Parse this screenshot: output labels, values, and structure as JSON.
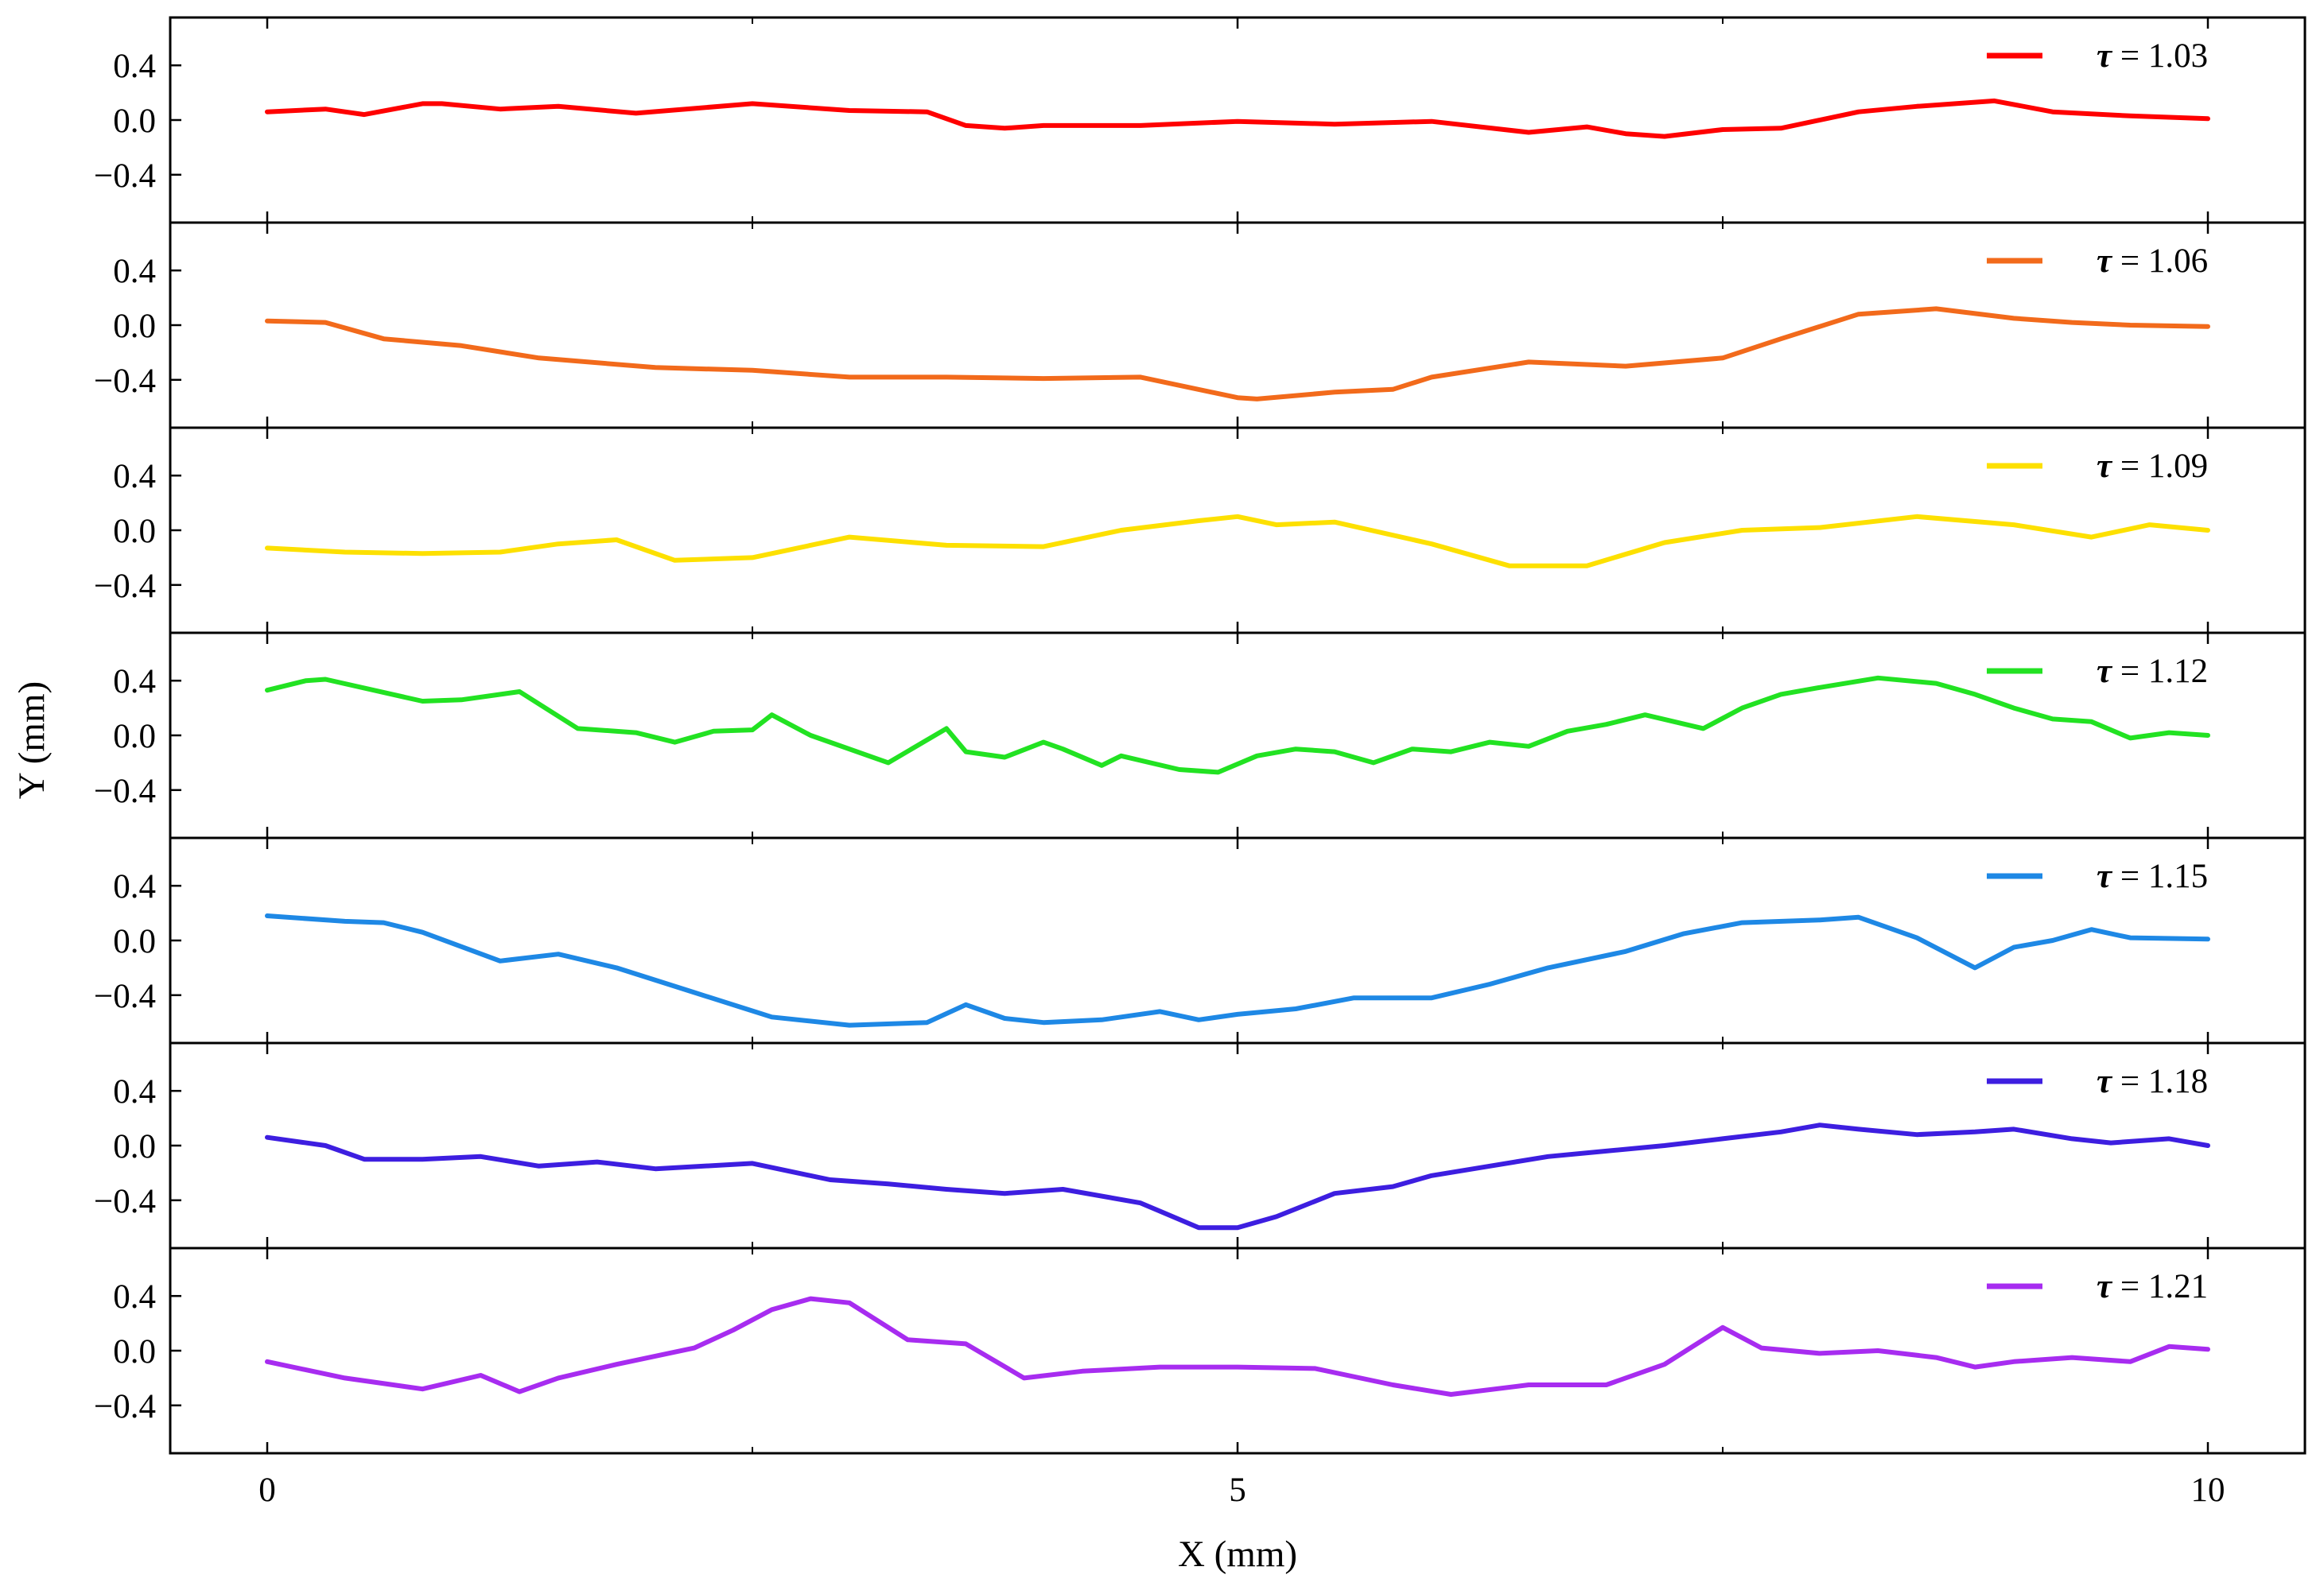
{
  "chart_data": {
    "type": "line",
    "layout": "stacked-panels",
    "xlabel": "X (mm)",
    "ylabel": "Y (mm)",
    "xlim": [
      -0.5,
      10.5
    ],
    "x_ticks": [
      0,
      5,
      10
    ],
    "x_tick_labels": [
      "0",
      "5",
      "10"
    ],
    "ylim": [
      -0.75,
      0.75
    ],
    "y_ticks": [
      0.4,
      0.0,
      -0.4
    ],
    "y_tick_labels": [
      "0.4",
      "0.0",
      "−0.4"
    ],
    "grid": false,
    "legend_placement": "top-right of each panel",
    "legend_symbol": "τ",
    "legend_equals": "=",
    "series": [
      {
        "name": "τ = 1.03",
        "tau": "1.03",
        "color": "#ff0000",
        "x": [
          0,
          0.3,
          0.5,
          0.8,
          0.9,
          1.2,
          1.5,
          1.9,
          2.5,
          3.0,
          3.4,
          3.6,
          3.8,
          4.0,
          4.5,
          5.0,
          5.5,
          6.0,
          6.5,
          6.8,
          7.0,
          7.2,
          7.5,
          7.8,
          8.2,
          8.5,
          8.9,
          9.2,
          9.6,
          10.0
        ],
        "values": [
          0.06,
          0.08,
          0.04,
          0.12,
          0.12,
          0.08,
          0.1,
          0.05,
          0.12,
          0.07,
          0.06,
          -0.04,
          -0.06,
          -0.04,
          -0.04,
          -0.01,
          -0.03,
          -0.01,
          -0.09,
          -0.05,
          -0.1,
          -0.12,
          -0.07,
          -0.06,
          0.06,
          0.1,
          0.14,
          0.06,
          0.03,
          0.01
        ]
      },
      {
        "name": "τ = 1.06",
        "tau": "1.06",
        "color": "#f26a1b",
        "x": [
          0,
          0.3,
          0.6,
          1.0,
          1.4,
          2.0,
          2.5,
          3.0,
          3.5,
          4.0,
          4.5,
          5.0,
          5.1,
          5.5,
          5.8,
          6.0,
          6.5,
          7.0,
          7.5,
          7.8,
          8.2,
          8.6,
          9.0,
          9.3,
          9.6,
          10.0
        ],
        "values": [
          0.03,
          0.02,
          -0.1,
          -0.15,
          -0.24,
          -0.31,
          -0.33,
          -0.38,
          -0.38,
          -0.39,
          -0.38,
          -0.53,
          -0.54,
          -0.49,
          -0.47,
          -0.38,
          -0.27,
          -0.3,
          -0.24,
          -0.1,
          0.08,
          0.12,
          0.05,
          0.02,
          0.0,
          -0.01
        ]
      },
      {
        "name": "τ = 1.09",
        "tau": "1.09",
        "color": "#fde000",
        "x": [
          0,
          0.4,
          0.8,
          1.2,
          1.5,
          1.8,
          2.1,
          2.5,
          3.0,
          3.5,
          4.0,
          4.4,
          4.8,
          5.0,
          5.2,
          5.5,
          6.0,
          6.4,
          6.8,
          7.2,
          7.6,
          8.0,
          8.5,
          9.0,
          9.4,
          9.7,
          10.0
        ],
        "values": [
          -0.13,
          -0.16,
          -0.17,
          -0.16,
          -0.1,
          -0.07,
          -0.22,
          -0.2,
          -0.05,
          -0.11,
          -0.12,
          0.0,
          0.07,
          0.1,
          0.04,
          0.06,
          -0.1,
          -0.26,
          -0.26,
          -0.09,
          0.0,
          0.02,
          0.1,
          0.04,
          -0.05,
          0.04,
          0.0
        ]
      },
      {
        "name": "τ = 1.12",
        "tau": "1.12",
        "color": "#22e222",
        "x": [
          0,
          0.2,
          0.3,
          0.8,
          1.0,
          1.3,
          1.6,
          1.9,
          2.1,
          2.3,
          2.5,
          2.6,
          2.8,
          3.2,
          3.5,
          3.6,
          3.8,
          4.0,
          4.1,
          4.3,
          4.4,
          4.7,
          4.9,
          5.1,
          5.3,
          5.5,
          5.7,
          5.9,
          6.1,
          6.3,
          6.5,
          6.7,
          6.9,
          7.1,
          7.4,
          7.6,
          7.8,
          8.0,
          8.3,
          8.6,
          8.8,
          9.0,
          9.2,
          9.4,
          9.6,
          9.8,
          10.0
        ],
        "values": [
          0.33,
          0.4,
          0.41,
          0.25,
          0.26,
          0.32,
          0.05,
          0.02,
          -0.05,
          0.03,
          0.04,
          0.15,
          0.0,
          -0.2,
          0.05,
          -0.12,
          -0.16,
          -0.05,
          -0.1,
          -0.22,
          -0.15,
          -0.25,
          -0.27,
          -0.15,
          -0.1,
          -0.12,
          -0.2,
          -0.1,
          -0.12,
          -0.05,
          -0.08,
          0.03,
          0.08,
          0.15,
          0.05,
          0.2,
          0.3,
          0.35,
          0.42,
          0.38,
          0.3,
          0.2,
          0.12,
          0.1,
          -0.02,
          0.02,
          0.0
        ]
      },
      {
        "name": "τ = 1.15",
        "tau": "1.15",
        "color": "#1e88e5",
        "x": [
          0,
          0.4,
          0.6,
          0.8,
          1.2,
          1.5,
          1.8,
          2.2,
          2.6,
          3.0,
          3.4,
          3.6,
          3.8,
          4.0,
          4.3,
          4.6,
          4.8,
          5.0,
          5.3,
          5.6,
          6.0,
          6.3,
          6.6,
          7.0,
          7.3,
          7.6,
          8.0,
          8.2,
          8.5,
          8.8,
          9.0,
          9.2,
          9.4,
          9.6,
          10.0
        ],
        "values": [
          0.18,
          0.14,
          0.13,
          0.06,
          -0.15,
          -0.1,
          -0.2,
          -0.38,
          -0.56,
          -0.62,
          -0.6,
          -0.47,
          -0.57,
          -0.6,
          -0.58,
          -0.52,
          -0.58,
          -0.54,
          -0.5,
          -0.42,
          -0.42,
          -0.32,
          -0.2,
          -0.08,
          0.05,
          0.13,
          0.15,
          0.17,
          0.02,
          -0.2,
          -0.05,
          0.0,
          0.08,
          0.02,
          0.01
        ]
      },
      {
        "name": "τ = 1.18",
        "tau": "1.18",
        "color": "#3d1ee0",
        "x": [
          0,
          0.3,
          0.5,
          0.8,
          1.1,
          1.4,
          1.7,
          2.0,
          2.5,
          2.9,
          3.2,
          3.5,
          3.8,
          4.1,
          4.5,
          4.8,
          5.0,
          5.2,
          5.5,
          5.8,
          6.0,
          6.3,
          6.6,
          6.9,
          7.2,
          7.5,
          7.8,
          8.0,
          8.2,
          8.5,
          8.8,
          9.0,
          9.3,
          9.5,
          9.8,
          10.0
        ],
        "values": [
          0.06,
          0.0,
          -0.1,
          -0.1,
          -0.08,
          -0.15,
          -0.12,
          -0.17,
          -0.13,
          -0.25,
          -0.28,
          -0.32,
          -0.35,
          -0.32,
          -0.42,
          -0.6,
          -0.6,
          -0.52,
          -0.35,
          -0.3,
          -0.22,
          -0.15,
          -0.08,
          -0.04,
          0.0,
          0.05,
          0.1,
          0.15,
          0.12,
          0.08,
          0.1,
          0.12,
          0.05,
          0.02,
          0.05,
          0.0
        ]
      },
      {
        "name": "τ = 1.21",
        "tau": "1.21",
        "color": "#a72cf0",
        "x": [
          0,
          0.4,
          0.8,
          1.1,
          1.3,
          1.5,
          1.8,
          2.2,
          2.4,
          2.6,
          2.8,
          3.0,
          3.3,
          3.6,
          3.9,
          4.2,
          4.6,
          5.0,
          5.4,
          5.8,
          6.1,
          6.5,
          6.9,
          7.2,
          7.5,
          7.7,
          8.0,
          8.3,
          8.6,
          8.8,
          9.0,
          9.3,
          9.6,
          9.8,
          10.0
        ],
        "values": [
          -0.08,
          -0.2,
          -0.28,
          -0.18,
          -0.3,
          -0.2,
          -0.1,
          0.02,
          0.15,
          0.3,
          0.38,
          0.35,
          0.08,
          0.05,
          -0.2,
          -0.15,
          -0.12,
          -0.12,
          -0.13,
          -0.25,
          -0.32,
          -0.25,
          -0.25,
          -0.1,
          0.17,
          0.02,
          -0.02,
          0.0,
          -0.05,
          -0.12,
          -0.08,
          -0.05,
          -0.08,
          0.03,
          0.01
        ]
      }
    ]
  }
}
